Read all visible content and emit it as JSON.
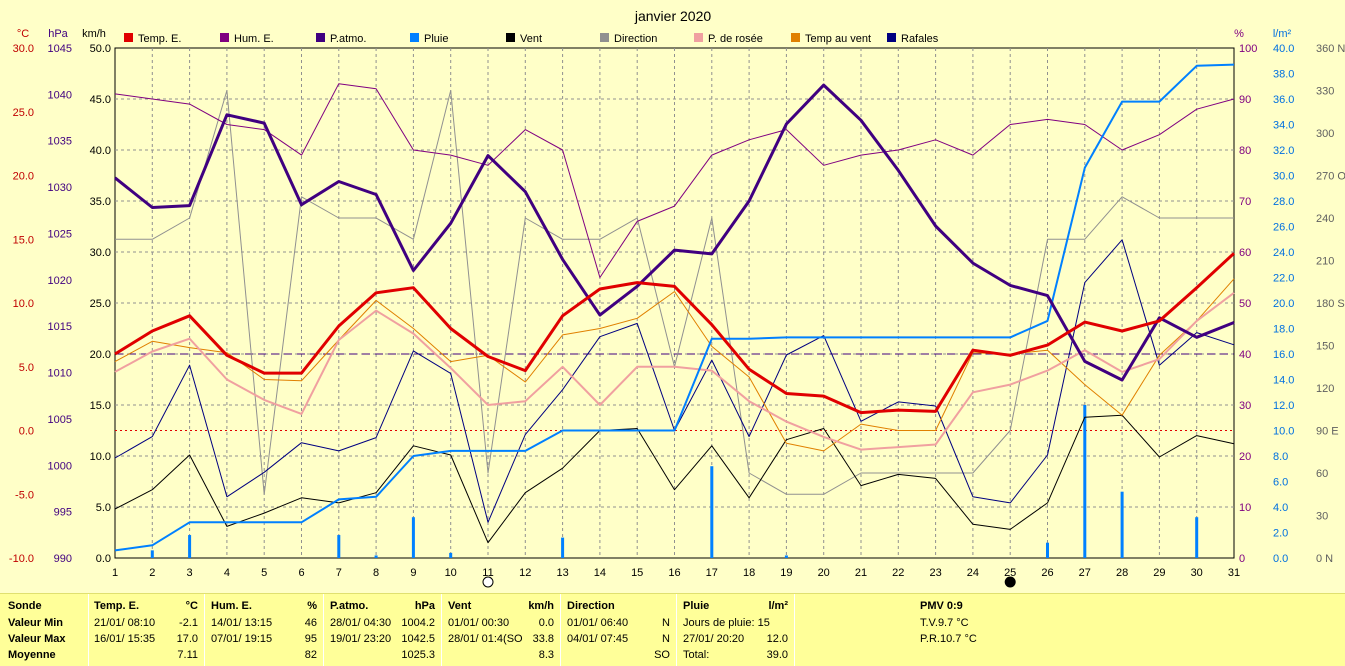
{
  "chart_data": {
    "type": "line",
    "title": "janvier 2020",
    "axes": {
      "temp": {
        "unit": "°C",
        "min": -10,
        "max": 30,
        "step": 5,
        "color": "#c00000"
      },
      "pressure": {
        "unit": "hPa",
        "min": 990,
        "max": 1045,
        "step": 5,
        "color": "#400080"
      },
      "wind": {
        "unit": "km/h",
        "min": 0,
        "max": 50,
        "step": 5,
        "color": "#000000"
      },
      "humidity": {
        "unit": "%",
        "min": 0,
        "max": 100,
        "step": 10,
        "color": "#800080"
      },
      "rain": {
        "unit": "l/m²",
        "min": 0,
        "max": 40,
        "step": 2,
        "color": "#0070e0"
      },
      "direction": {
        "unit": "",
        "ticks": [
          "0 N",
          "30",
          "60",
          "90 E",
          "120",
          "150",
          "180 S",
          "210",
          "240",
          "270 O",
          "300",
          "330",
          "360 N"
        ],
        "color": "#606060"
      }
    },
    "x": [
      1,
      2,
      3,
      4,
      5,
      6,
      7,
      8,
      9,
      10,
      11,
      12,
      13,
      14,
      15,
      16,
      17,
      18,
      19,
      20,
      21,
      22,
      23,
      24,
      25,
      26,
      27,
      28,
      29,
      30,
      31
    ],
    "grid": true,
    "moon_phases": [
      {
        "day": 11,
        "phase": "full"
      },
      {
        "day": 25,
        "phase": "new"
      }
    ],
    "reference_lines": {
      "zero_temp": 0,
      "mean_pressure_temp": 6.0
    },
    "series": [
      {
        "name": "Temp. E.",
        "axis": "temp",
        "color": "#e00000",
        "width": 3,
        "values": [
          6.0,
          7.8,
          9.0,
          5.9,
          4.5,
          4.5,
          8.2,
          10.8,
          11.2,
          8.0,
          5.8,
          4.7,
          9.0,
          11.1,
          11.6,
          11.3,
          8.3,
          4.8,
          2.9,
          2.7,
          1.4,
          1.6,
          1.5,
          6.3,
          5.9,
          6.7,
          8.5,
          7.8,
          8.6,
          11.2,
          13.9
        ]
      },
      {
        "name": "Hum. E.",
        "axis": "humidity",
        "color": "#800080",
        "width": 1,
        "values": [
          91,
          90,
          89,
          85,
          84,
          79,
          93,
          92,
          80,
          79,
          77,
          84,
          80,
          55,
          66,
          69,
          79,
          82,
          84,
          77,
          79,
          80,
          82,
          79,
          85,
          86,
          85,
          80,
          83,
          88,
          90
        ]
      },
      {
        "name": "P.atmo.",
        "axis": "pressure",
        "color": "#400080",
        "width": 3,
        "values": [
          1031,
          1027.8,
          1028,
          1037.8,
          1036.9,
          1028.1,
          1030.6,
          1029.2,
          1021,
          1026.1,
          1033.4,
          1029.5,
          1022.2,
          1016.2,
          1019.3,
          1023.2,
          1022.8,
          1028.5,
          1036.8,
          1041,
          1037.2,
          1031.8,
          1025.8,
          1021.8,
          1019.4,
          1018.3,
          1011.2,
          1009.2,
          1015.9,
          1013.8,
          1015.4
        ]
      },
      {
        "name": "Pluie",
        "axis": "rain",
        "color": "#0080ff",
        "width": 2,
        "values": [
          0.6,
          1.0,
          2.8,
          2.8,
          2.8,
          2.8,
          4.6,
          4.8,
          8.0,
          8.4,
          8.4,
          8.4,
          10.0,
          10.0,
          10.0,
          10.0,
          17.2,
          17.2,
          17.3,
          17.3,
          17.3,
          17.3,
          17.3,
          17.3,
          17.3,
          18.6,
          30.6,
          35.8,
          35.8,
          38.6,
          38.7
        ]
      },
      {
        "name": "Vent",
        "axis": "wind",
        "color": "#000000",
        "width": 1,
        "values": [
          4.8,
          6.7,
          10.1,
          3.1,
          4.4,
          5.9,
          5.4,
          6.4,
          11.0,
          10.1,
          1.5,
          6.4,
          8.8,
          12.5,
          12.7,
          6.7,
          11.0,
          5.9,
          11.6,
          12.7,
          7.1,
          8.2,
          7.8,
          3.3,
          2.8,
          5.4,
          13.8,
          14.0,
          9.9,
          12.0,
          11.2
        ]
      },
      {
        "name": "Direction",
        "axis": "direction",
        "color": "#909090",
        "width": 1,
        "values": [
          225,
          225,
          240,
          330,
          45,
          255,
          240,
          240,
          225,
          330,
          60,
          240,
          225,
          225,
          240,
          135,
          240,
          60,
          45,
          45,
          60,
          60,
          60,
          60,
          90,
          225,
          225,
          255,
          240,
          240,
          240
        ]
      },
      {
        "name": "P. de rosée",
        "axis": "temp",
        "color": "#f0a0a0",
        "width": 2,
        "values": [
          4.6,
          6.2,
          7.2,
          4.0,
          2.4,
          1.3,
          7.1,
          9.4,
          7.6,
          4.9,
          2.0,
          2.3,
          5.0,
          2.0,
          5.0,
          5.0,
          4.7,
          2.3,
          0.7,
          -0.5,
          -1.5,
          -1.3,
          -1.1,
          3.0,
          3.6,
          4.7,
          6.3,
          4.6,
          5.6,
          8.6,
          10.8
        ]
      },
      {
        "name": "Temp au vent",
        "axis": "temp",
        "color": "#e08000",
        "width": 1,
        "values": [
          5.4,
          7.0,
          6.5,
          6.1,
          4.0,
          3.9,
          7.1,
          10.2,
          8.0,
          5.4,
          5.9,
          3.8,
          7.5,
          8.0,
          8.8,
          10.9,
          6.6,
          4.2,
          -1.0,
          -1.6,
          0.5,
          0.0,
          0.0,
          6.1,
          6.0,
          6.3,
          3.6,
          1.2,
          5.9,
          8.6,
          11.9
        ]
      },
      {
        "name": "Rafales",
        "axis": "wind",
        "color": "#000080",
        "width": 1,
        "values": [
          9.8,
          11.9,
          18.9,
          6.0,
          8.4,
          11.3,
          10.5,
          11.8,
          20.3,
          18.1,
          3.5,
          12.1,
          16.5,
          21.7,
          23.0,
          12.5,
          19.4,
          11.9,
          19.9,
          21.8,
          13.4,
          15.3,
          14.9,
          6.0,
          5.4,
          10.1,
          27.0,
          31.2,
          18.9,
          22.1,
          20.9
        ]
      },
      {
        "name": "",
        "axis": "rain",
        "color": "#0080ff",
        "type": "bar",
        "values": [
          0,
          0.6,
          1.8,
          0,
          0,
          0,
          1.8,
          0.2,
          3.2,
          0.4,
          0,
          0,
          1.6,
          0,
          0,
          0,
          7.2,
          0,
          0.2,
          0,
          0,
          0,
          0,
          0,
          0,
          1.2,
          12.0,
          5.2,
          0,
          3.2,
          0
        ]
      }
    ]
  },
  "stats": {
    "sonde": {
      "header": "Sonde",
      "rows": [
        "Valeur Min",
        "Valeur Max",
        "Moyenne"
      ]
    },
    "temp": {
      "header": "Temp. E.",
      "unit": "°C",
      "min_time": "21/01/ 08:10",
      "min_val": "-2.1",
      "max_time": "16/01/ 15:35",
      "max_val": "17.0",
      "mean": "7.11"
    },
    "hum": {
      "header": "Hum. E.",
      "unit": "%",
      "min_time": "14/01/ 13:15",
      "min_val": "46",
      "max_time": "07/01/ 19:15",
      "max_val": "95",
      "mean": "82"
    },
    "patmo": {
      "header": "P.atmo.",
      "unit": "hPa",
      "min_time": "28/01/ 04:30",
      "min_val": "1004.2",
      "max_time": "19/01/ 23:20",
      "max_val": "1042.5",
      "mean": "1025.3"
    },
    "vent": {
      "header": "Vent",
      "unit": "km/h",
      "min_time": "01/01/ 00:30",
      "min_val": "0.0",
      "max_time": "28/01/ 01:4(SO",
      "max_val": "33.8",
      "mean": "8.3"
    },
    "direction": {
      "header": "Direction",
      "min_time": "01/01/ 06:40",
      "min_val": "N",
      "max_time": "04/01/ 07:45",
      "max_val": "N",
      "mean": "SO"
    },
    "pluie": {
      "header": "Pluie",
      "unit": "l/m²",
      "days": "Jours de pluie: 15",
      "max_time": "27/01/ 20:20",
      "max_val": "12.0",
      "total_label": "Total:",
      "total": "39.0"
    },
    "pmv": {
      "header": "PMV 0:9",
      "tv": "T.V.9.7 °C",
      "pr": "P.R.10.7 °C"
    }
  }
}
